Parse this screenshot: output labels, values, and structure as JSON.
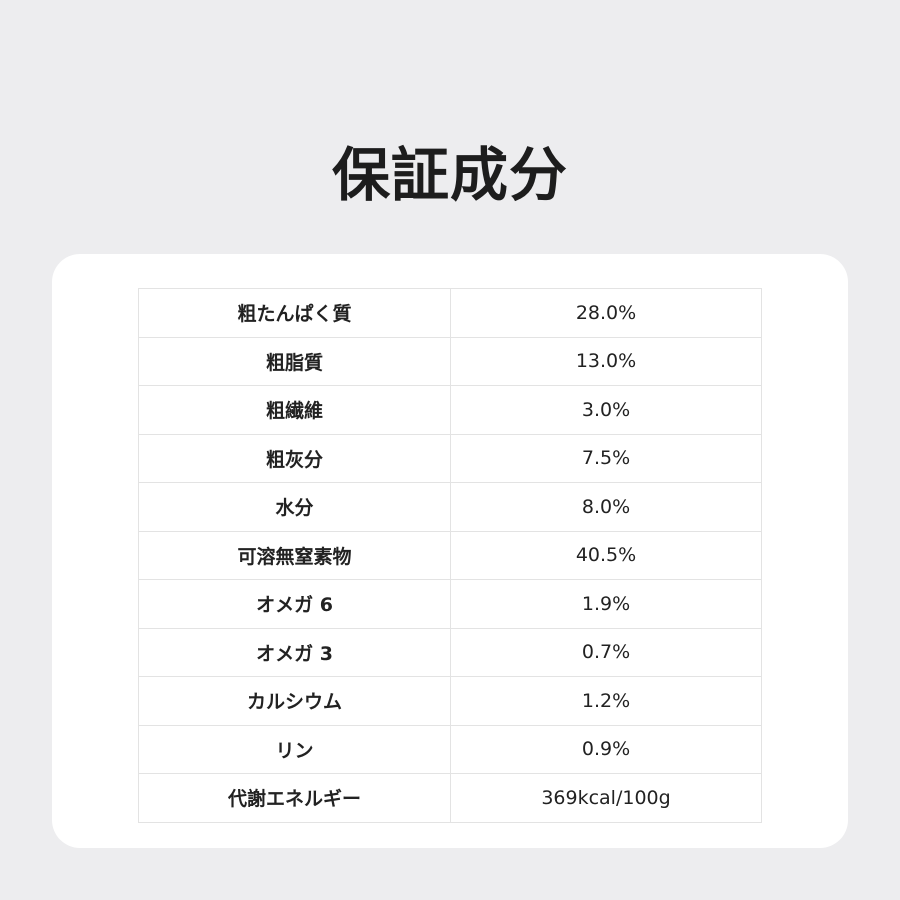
{
  "title": "保証成分",
  "rows": [
    {
      "label": "粗たんぱく質",
      "value": "28.0%"
    },
    {
      "label": "粗脂質",
      "value": "13.0%"
    },
    {
      "label": "粗繊維",
      "value": "3.0%"
    },
    {
      "label": "粗灰分",
      "value": "7.5%"
    },
    {
      "label": "水分",
      "value": "8.0%"
    },
    {
      "label": "可溶無窒素物",
      "value": "40.5%"
    },
    {
      "label": "オメガ 6",
      "value": "1.9%"
    },
    {
      "label": "オメガ 3",
      "value": "0.7%"
    },
    {
      "label": "カルシウム",
      "value": "1.2%"
    },
    {
      "label": "リン",
      "value": "0.9%"
    },
    {
      "label": "代謝エネルギー",
      "value": "369kcal/100g"
    }
  ]
}
